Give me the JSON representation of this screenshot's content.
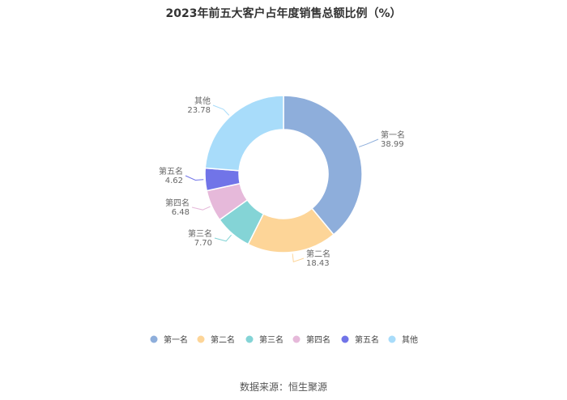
{
  "chart_data": {
    "type": "pie",
    "title": "2023年前五大客户占年度销售总额比例（%）",
    "categories": [
      "第一名",
      "第二名",
      "第三名",
      "第四名",
      "第五名",
      "其他"
    ],
    "values": [
      38.99,
      18.43,
      7.7,
      6.48,
      4.62,
      23.78
    ],
    "value_labels": [
      "38.99",
      "18.43",
      "7.70",
      "6.48",
      "4.62",
      "23.78"
    ],
    "colors": [
      "#8eaedb",
      "#fdd598",
      "#84d4d6",
      "#e6b9da",
      "#7174e8",
      "#a8dcfa"
    ],
    "legend_position": "bottom",
    "donut": true
  },
  "source": "数据来源：恒生聚源"
}
